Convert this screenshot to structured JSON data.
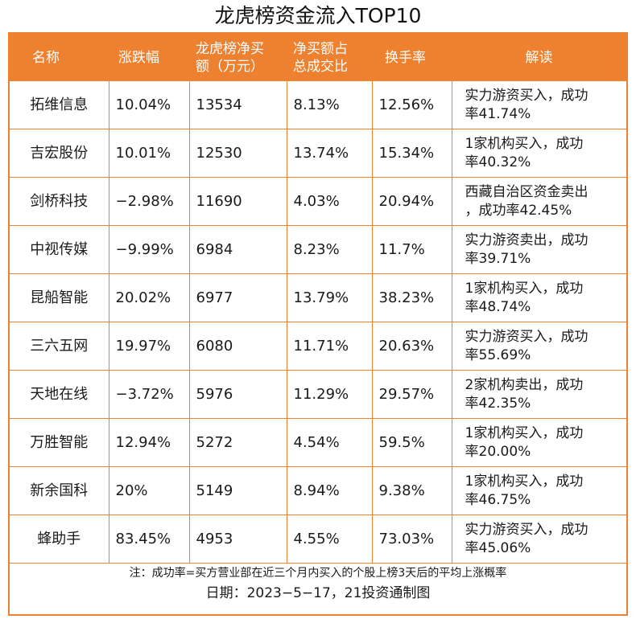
{
  "title": "龙虎榜资金流入TOP10",
  "headers": [
    "名称",
    "涨跌幅",
    "龙虎榜净买额（万元）",
    "净买额占总成交比",
    "换手率",
    "解读"
  ],
  "header_lines": [
    [
      "名称"
    ],
    [
      "涨跌幅"
    ],
    [
      "龙虎榜净买",
      "额（万元）"
    ],
    [
      "净买额占",
      "总成交比"
    ],
    [
      "换手率"
    ],
    [
      "解读"
    ]
  ],
  "rows": [
    {
      "name": "拓维信息",
      "change": "10.04%",
      "net_buy": "13534",
      "ratio": "8.13%",
      "turnover": "12.56%",
      "note_lines": [
        "实力游资买入，成功",
        "率41.74%"
      ]
    },
    {
      "name": "吉宏股份",
      "change": "10.01%",
      "net_buy": "12530",
      "ratio": "13.74%",
      "turnover": "15.34%",
      "note_lines": [
        "1家机构买入，成功",
        "率40.32%"
      ]
    },
    {
      "name": "剑桥科技",
      "change": "−2.98%",
      "net_buy": "11690",
      "ratio": "4.03%",
      "turnover": "20.94%",
      "note_lines": [
        "西藏自治区资金卖出",
        "，成功率42.45%"
      ]
    },
    {
      "name": "中视传媒",
      "change": "−9.99%",
      "net_buy": "6984",
      "ratio": "8.23%",
      "turnover": "11.7%",
      "note_lines": [
        "实力游资卖出，成功",
        "率39.71%"
      ]
    },
    {
      "name": "昆船智能",
      "change": "20.02%",
      "net_buy": "6977",
      "ratio": "13.79%",
      "turnover": "38.23%",
      "note_lines": [
        "1家机构买入，成功",
        "率48.74%"
      ]
    },
    {
      "name": "三六五网",
      "change": "19.97%",
      "net_buy": "6080",
      "ratio": "11.71%",
      "turnover": "20.63%",
      "note_lines": [
        "实力游资买入，成功",
        "率55.69%"
      ]
    },
    {
      "name": "天地在线",
      "change": "−3.72%",
      "net_buy": "5976",
      "ratio": "11.29%",
      "turnover": "29.57%",
      "note_lines": [
        "2家机构卖出，成功",
        "率42.35%"
      ]
    },
    {
      "name": "万胜智能",
      "change": "12.94%",
      "net_buy": "5272",
      "ratio": "4.54%",
      "turnover": "59.5%",
      "note_lines": [
        "1家机构买入，成功",
        "率20.00%"
      ]
    },
    {
      "name": "新余国科",
      "change": "20%",
      "net_buy": "5149",
      "ratio": "8.94%",
      "turnover": "9.38%",
      "note_lines": [
        "1家机构买入，成功",
        "率46.75%"
      ]
    },
    {
      "name": "蜂助手",
      "change": "83.45%",
      "net_buy": "4953",
      "ratio": "4.55%",
      "turnover": "73.03%",
      "note_lines": [
        "实力游资买入，成功",
        "率45.06%"
      ]
    }
  ],
  "footnote": "注：成功率=买方营业部在近三个月内买入的个股上榜3天后的平均上涨概率",
  "date_line": "日期：2023−5−17，21投资通制图",
  "colors": {
    "accent": "#ee8130",
    "header_text": "#ffffff",
    "body_text": "#1a1a1a"
  }
}
